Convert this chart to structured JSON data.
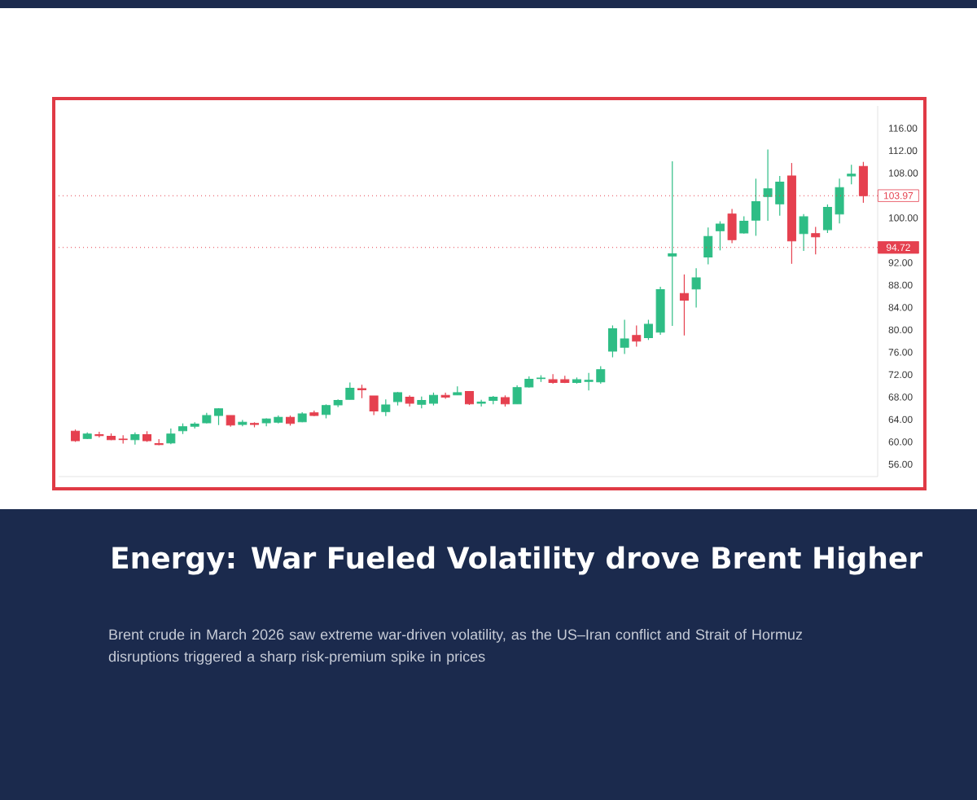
{
  "chart_data": {
    "type": "candlestick",
    "title": "Energy: War Fueled Volatility drove Brent Higher",
    "subtitle": "Brent crude in March 2026 saw extreme war-driven volatility, as the US–Iran conflict and Strait of Hormuz disruptions triggered a sharp risk-premium spike in prices",
    "categories": [
      null,
      null,
      null,
      null,
      null,
      null,
      null,
      null,
      null,
      null,
      null,
      null,
      null,
      null,
      null,
      null,
      null,
      null,
      null,
      null,
      null,
      null,
      null,
      null,
      null,
      null,
      null,
      null,
      null,
      null,
      null,
      null,
      null,
      null,
      null,
      null,
      null,
      null,
      null,
      null,
      null,
      null,
      null,
      null,
      null,
      null,
      null,
      null,
      null,
      null,
      null,
      null,
      null,
      null,
      null,
      null,
      null,
      null,
      null,
      null,
      null,
      null,
      null,
      null,
      null,
      null,
      null
    ],
    "ohlc": [
      [
        61.9,
        62.2,
        60.0,
        60.2
      ],
      [
        60.6,
        61.7,
        60.5,
        61.4
      ],
      [
        61.3,
        61.8,
        60.8,
        61.1
      ],
      [
        61.0,
        61.5,
        60.3,
        60.4
      ],
      [
        60.5,
        61.2,
        59.7,
        60.4
      ],
      [
        60.4,
        61.7,
        59.5,
        61.3
      ],
      [
        61.3,
        61.9,
        60.0,
        60.2
      ],
      [
        59.7,
        60.5,
        59.4,
        59.5
      ],
      [
        59.8,
        62.4,
        59.6,
        61.4
      ],
      [
        62.0,
        63.3,
        61.4,
        62.7
      ],
      [
        62.8,
        63.5,
        62.4,
        63.2
      ],
      [
        63.4,
        65.2,
        63.3,
        64.7
      ],
      [
        64.7,
        66.0,
        63.0,
        65.9
      ],
      [
        64.7,
        64.7,
        62.7,
        63.0
      ],
      [
        63.1,
        63.9,
        62.8,
        63.5
      ],
      [
        63.3,
        63.5,
        62.6,
        63.1
      ],
      [
        63.4,
        64.2,
        62.8,
        64.1
      ],
      [
        63.5,
        64.7,
        63.3,
        64.4
      ],
      [
        64.4,
        64.7,
        62.9,
        63.3
      ],
      [
        63.6,
        65.3,
        63.5,
        65.0
      ],
      [
        65.2,
        65.6,
        64.6,
        64.7
      ],
      [
        64.9,
        66.7,
        64.2,
        66.5
      ],
      [
        66.6,
        67.6,
        66.2,
        67.4
      ],
      [
        67.6,
        70.6,
        67.6,
        69.6
      ],
      [
        69.5,
        70.2,
        67.8,
        69.3
      ],
      [
        68.2,
        68.2,
        64.8,
        65.5
      ],
      [
        65.4,
        67.6,
        64.6,
        66.6
      ],
      [
        67.2,
        68.9,
        66.5,
        68.8
      ],
      [
        68.0,
        68.3,
        66.3,
        66.9
      ],
      [
        66.7,
        68.1,
        66.0,
        67.4
      ],
      [
        66.9,
        68.8,
        66.5,
        68.3
      ],
      [
        68.3,
        68.8,
        67.7,
        68.0
      ],
      [
        68.4,
        69.9,
        68.4,
        68.8
      ],
      [
        69.0,
        69.0,
        66.6,
        66.8
      ],
      [
        66.9,
        67.5,
        66.3,
        67.1
      ],
      [
        67.4,
        68.2,
        66.7,
        68.0
      ],
      [
        67.9,
        68.3,
        66.3,
        66.8
      ],
      [
        66.8,
        70.1,
        66.8,
        69.7
      ],
      [
        69.8,
        71.7,
        69.7,
        71.2
      ],
      [
        71.3,
        71.9,
        70.7,
        71.4
      ],
      [
        71.1,
        72.1,
        70.4,
        70.6
      ],
      [
        71.1,
        71.8,
        70.5,
        70.6
      ],
      [
        70.6,
        71.5,
        70.4,
        71.1
      ],
      [
        70.8,
        72.3,
        69.2,
        71.0
      ],
      [
        70.7,
        73.5,
        70.4,
        72.9
      ],
      [
        76.2,
        80.8,
        75.1,
        80.2
      ],
      [
        76.9,
        81.8,
        75.7,
        78.4
      ],
      [
        79.0,
        80.8,
        77.0,
        78.0
      ],
      [
        78.6,
        81.8,
        78.2,
        81.0
      ],
      [
        79.6,
        87.7,
        79.1,
        87.2
      ],
      [
        93.2,
        110.1,
        80.7,
        93.6
      ],
      [
        86.5,
        89.9,
        79.0,
        85.3
      ],
      [
        87.3,
        91.0,
        84.0,
        89.3
      ],
      [
        93.0,
        98.3,
        91.7,
        96.7
      ],
      [
        97.7,
        99.4,
        94.2,
        98.9
      ],
      [
        100.7,
        101.6,
        95.5,
        96.1
      ],
      [
        97.3,
        100.3,
        97.2,
        99.4
      ],
      [
        99.6,
        107.0,
        96.8,
        102.9
      ],
      [
        103.8,
        112.2,
        99.5,
        105.2
      ],
      [
        102.5,
        107.5,
        100.4,
        106.4
      ],
      [
        107.5,
        109.8,
        91.8,
        95.9
      ],
      [
        97.2,
        100.7,
        94.1,
        100.2
      ],
      [
        97.2,
        98.4,
        93.5,
        96.6
      ],
      [
        97.9,
        102.4,
        97.3,
        101.9
      ],
      [
        100.7,
        107.0,
        99.0,
        105.4
      ],
      [
        107.5,
        109.5,
        106.0,
        107.8
      ],
      [
        109.2,
        110.0,
        102.7,
        103.97
      ]
    ],
    "ylim": [
      53.8,
      120
    ],
    "yticks": [
      {
        "value": 56,
        "label": "56.00"
      },
      {
        "value": 60,
        "label": "60.00"
      },
      {
        "value": 64,
        "label": "64.00"
      },
      {
        "value": 68,
        "label": "68.00"
      },
      {
        "value": 72,
        "label": "72.00"
      },
      {
        "value": 76,
        "label": "76.00"
      },
      {
        "value": 80,
        "label": "80.00"
      },
      {
        "value": 84,
        "label": "84.00"
      },
      {
        "value": 88,
        "label": "88.00"
      },
      {
        "value": 92,
        "label": "92.00"
      },
      {
        "value": 100,
        "label": "100.00"
      },
      {
        "value": 108,
        "label": "108.00"
      },
      {
        "value": 112,
        "label": "112.00"
      },
      {
        "value": 116,
        "label": "116.00"
      }
    ],
    "tick_labels": "y",
    "ref_lines": [
      {
        "axis": "y",
        "value": 94.72,
        "label": "94.72",
        "color": "#e5404f",
        "line_style": "dotted"
      },
      {
        "axis": "y",
        "value": 103.97,
        "label": "103.97",
        "line_style": "dotted"
      }
    ]
  }
}
